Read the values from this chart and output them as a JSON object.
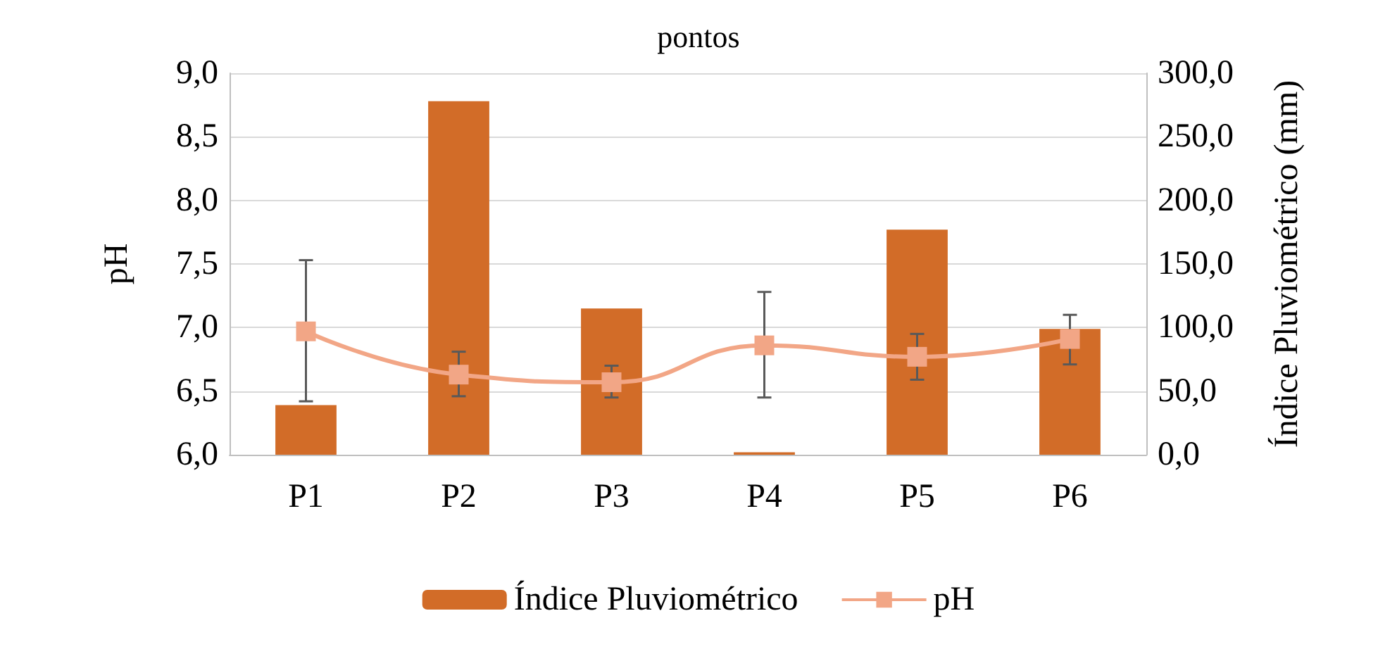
{
  "chart_data": {
    "type": "bar",
    "title": "pontos",
    "categories": [
      "P1",
      "P2",
      "P3",
      "P4",
      "P5",
      "P6"
    ],
    "series": [
      {
        "name": "Índice Pluviométrico",
        "axis": "y2",
        "color": "#d26c28",
        "values": [
          39,
          278,
          115,
          2,
          177,
          99
        ]
      },
      {
        "name": "pH",
        "type": "line",
        "color": "#f2a686",
        "marker": "square",
        "values": [
          6.97,
          6.63,
          6.57,
          6.86,
          6.77,
          6.91
        ],
        "errors": [
          [
            6.42,
            7.53
          ],
          [
            6.46,
            6.81
          ],
          [
            6.45,
            6.7
          ],
          [
            6.45,
            7.28
          ],
          [
            6.59,
            6.95
          ],
          [
            6.71,
            7.1
          ]
        ]
      }
    ],
    "ylabel": "pH",
    "y2label": "Índice Pluviométrico (mm)",
    "ylim": [
      6,
      9
    ],
    "yticks": [
      {
        "value": 6,
        "label": "6,0"
      },
      {
        "value": 6.5,
        "label": "6,5"
      },
      {
        "value": 7,
        "label": "7,0"
      },
      {
        "value": 7.5,
        "label": "7,5"
      },
      {
        "value": 8,
        "label": "8,0"
      },
      {
        "value": 8.5,
        "label": "8,5"
      },
      {
        "value": 9,
        "label": "9,0"
      }
    ],
    "y2lim": [
      0,
      300
    ],
    "y2ticks": [
      {
        "value": 0,
        "label": "0,0"
      },
      {
        "value": 50,
        "label": "50,0"
      },
      {
        "value": 100,
        "label": "100,0"
      },
      {
        "value": 150,
        "label": "150,0"
      },
      {
        "value": 200,
        "label": "200,0"
      },
      {
        "value": 250,
        "label": "250,0"
      },
      {
        "value": 300,
        "label": "300,0"
      }
    ],
    "grid": "y",
    "legend": "bottom"
  }
}
